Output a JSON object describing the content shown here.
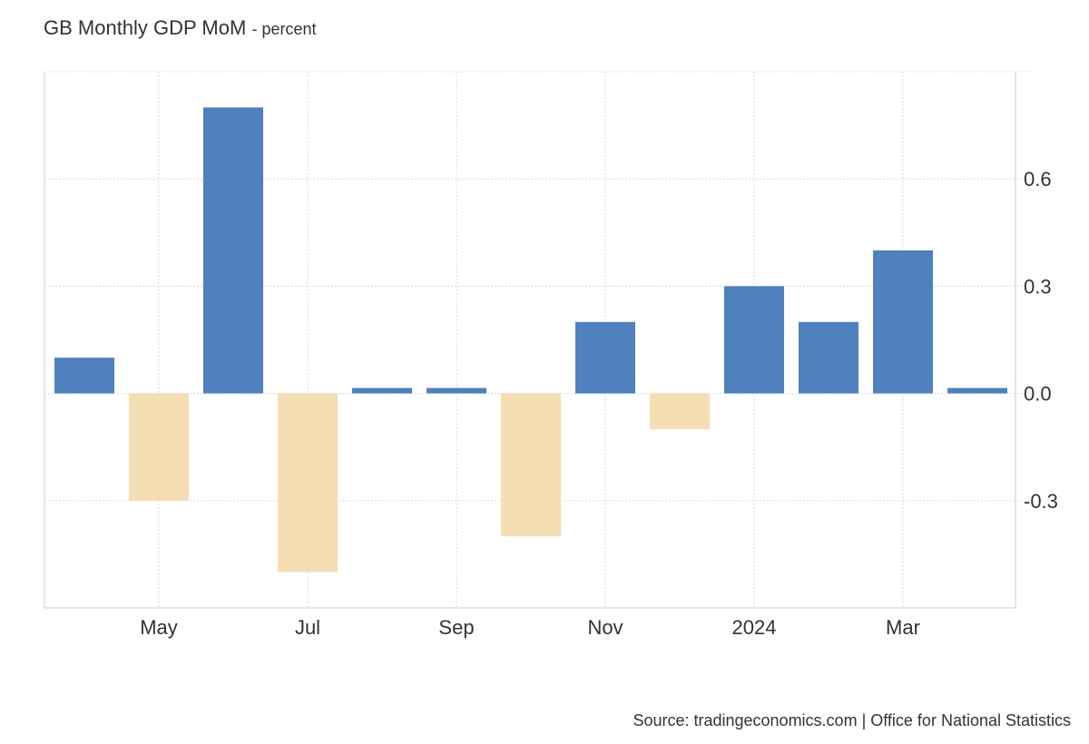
{
  "title": "GB Monthly GDP MoM",
  "unit": "- percent",
  "source": "Source: tradingeconomics.com | Office for National Statistics",
  "colors": {
    "positive": "#4e81bd",
    "negative": "#f5deb3",
    "grid": "#d9d9d9",
    "axis": "#cccccc"
  },
  "chart_data": {
    "type": "bar",
    "categories": [
      "2023-04",
      "2023-05",
      "2023-06",
      "2023-07",
      "2023-08",
      "2023-09",
      "2023-10",
      "2023-11",
      "2023-12",
      "2024-01",
      "2024-02",
      "2024-03",
      "2024-04"
    ],
    "values": [
      0.1,
      -0.3,
      0.8,
      -0.5,
      0.0,
      0.0,
      -0.4,
      0.2,
      -0.1,
      0.3,
      0.2,
      0.4,
      0.0
    ],
    "x_ticks": [
      {
        "at": "2023-05",
        "label": "May"
      },
      {
        "at": "2023-07",
        "label": "Jul"
      },
      {
        "at": "2023-09",
        "label": "Sep"
      },
      {
        "at": "2023-11",
        "label": "Nov"
      },
      {
        "at": "2024-01",
        "label": "2024"
      },
      {
        "at": "2024-03",
        "label": "Mar"
      }
    ],
    "y_ticks": [
      0.6,
      0.3,
      0.0,
      -0.3
    ],
    "y_tick_labels": [
      "0.6",
      "0.3",
      "0.0",
      "-0.3"
    ],
    "ylim": [
      -0.6,
      0.9
    ],
    "grid": true,
    "y_axis_side": "right",
    "legend": "none"
  }
}
